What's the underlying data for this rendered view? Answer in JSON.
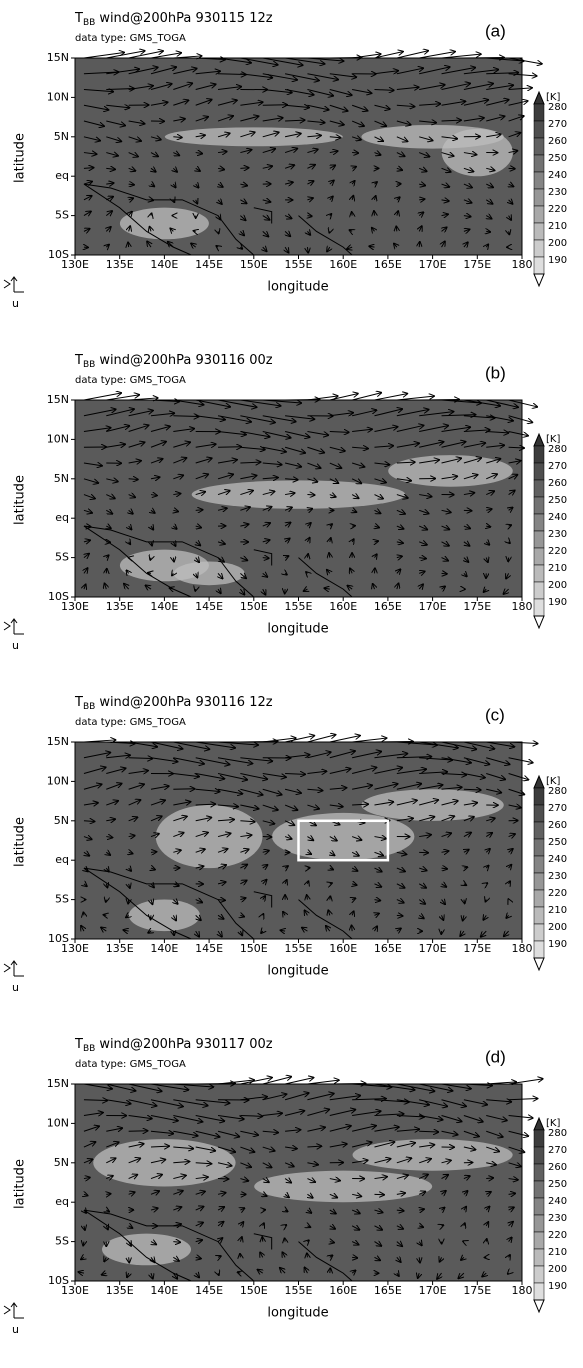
{
  "chart_data": [
    {
      "type": "map",
      "title_symbol": "T",
      "title_subscript": "BB",
      "title": "wind@200hPa 930115 12z",
      "subtitle": "data type: GMS_TOGA",
      "panel_label": "(a)",
      "xlabel": "longitude",
      "ylabel": "latitude",
      "vector_key": "u",
      "xlim": [
        130,
        180
      ],
      "ylim": [
        -10,
        15
      ],
      "xticks": [
        {
          "value": 130,
          "label": "130E"
        },
        {
          "value": 135,
          "label": "135E"
        },
        {
          "value": 140,
          "label": "140E"
        },
        {
          "value": 145,
          "label": "145E"
        },
        {
          "value": 150,
          "label": "150E"
        },
        {
          "value": 155,
          "label": "155E"
        },
        {
          "value": 160,
          "label": "160E"
        },
        {
          "value": 165,
          "label": "165E"
        },
        {
          "value": 170,
          "label": "170E"
        },
        {
          "value": 175,
          "label": "175E"
        },
        {
          "value": 180,
          "label": "180"
        }
      ],
      "yticks": [
        {
          "value": -10,
          "label": "10S"
        },
        {
          "value": -5,
          "label": "5S"
        },
        {
          "value": 0,
          "label": "eq"
        },
        {
          "value": 5,
          "label": "5N"
        },
        {
          "value": 10,
          "label": "10N"
        },
        {
          "value": 15,
          "label": "15N"
        }
      ],
      "colorbar_unit": "[K]",
      "colorbar_levels": [
        280,
        270,
        260,
        250,
        240,
        230,
        220,
        210,
        200,
        190
      ]
    },
    {
      "type": "map",
      "title_symbol": "T",
      "title_subscript": "BB",
      "title": "wind@200hPa 930116 00z",
      "subtitle": "data type: GMS_TOGA",
      "panel_label": "(b)",
      "xlabel": "longitude",
      "ylabel": "latitude",
      "vector_key": "u",
      "xlim": [
        130,
        180
      ],
      "ylim": [
        -10,
        15
      ],
      "xticks": [
        {
          "value": 130,
          "label": "130E"
        },
        {
          "value": 135,
          "label": "135E"
        },
        {
          "value": 140,
          "label": "140E"
        },
        {
          "value": 145,
          "label": "145E"
        },
        {
          "value": 150,
          "label": "150E"
        },
        {
          "value": 155,
          "label": "155E"
        },
        {
          "value": 160,
          "label": "160E"
        },
        {
          "value": 165,
          "label": "165E"
        },
        {
          "value": 170,
          "label": "170E"
        },
        {
          "value": 175,
          "label": "175E"
        },
        {
          "value": 180,
          "label": "180"
        }
      ],
      "yticks": [
        {
          "value": -10,
          "label": "10S"
        },
        {
          "value": -5,
          "label": "5S"
        },
        {
          "value": 0,
          "label": "eq"
        },
        {
          "value": 5,
          "label": "5N"
        },
        {
          "value": 10,
          "label": "10N"
        },
        {
          "value": 15,
          "label": "15N"
        }
      ],
      "colorbar_unit": "[K]",
      "colorbar_levels": [
        280,
        270,
        260,
        250,
        240,
        230,
        220,
        210,
        200,
        190
      ]
    },
    {
      "type": "map",
      "title_symbol": "T",
      "title_subscript": "BB",
      "title": "wind@200hPa 930116 12z",
      "subtitle": "data type: GMS_TOGA",
      "panel_label": "(c)",
      "xlabel": "longitude",
      "ylabel": "latitude",
      "vector_key": "u",
      "xlim": [
        130,
        180
      ],
      "ylim": [
        -10,
        15
      ],
      "xticks": [
        {
          "value": 130,
          "label": "130E"
        },
        {
          "value": 135,
          "label": "135E"
        },
        {
          "value": 140,
          "label": "140E"
        },
        {
          "value": 145,
          "label": "145E"
        },
        {
          "value": 150,
          "label": "150E"
        },
        {
          "value": 155,
          "label": "155E"
        },
        {
          "value": 160,
          "label": "160E"
        },
        {
          "value": 165,
          "label": "165E"
        },
        {
          "value": 170,
          "label": "170E"
        },
        {
          "value": 175,
          "label": "175E"
        },
        {
          "value": 180,
          "label": "180"
        }
      ],
      "yticks": [
        {
          "value": -10,
          "label": "10S"
        },
        {
          "value": -5,
          "label": "5S"
        },
        {
          "value": 0,
          "label": "eq"
        },
        {
          "value": 5,
          "label": "5N"
        },
        {
          "value": 10,
          "label": "10N"
        },
        {
          "value": 15,
          "label": "15N"
        }
      ],
      "colorbar_unit": "[K]",
      "colorbar_levels": [
        280,
        270,
        260,
        250,
        240,
        230,
        220,
        210,
        200,
        190
      ],
      "box": {
        "xlim": [
          155,
          165
        ],
        "ylim": [
          0,
          5
        ]
      }
    },
    {
      "type": "map",
      "title_symbol": "T",
      "title_subscript": "BB",
      "title": "wind@200hPa 930117 00z",
      "subtitle": "data type: GMS_TOGA",
      "panel_label": "(d)",
      "xlabel": "longitude",
      "ylabel": "latitude",
      "vector_key": "u",
      "xlim": [
        130,
        180
      ],
      "ylim": [
        -10,
        15
      ],
      "xticks": [
        {
          "value": 130,
          "label": "130E"
        },
        {
          "value": 135,
          "label": "135E"
        },
        {
          "value": 140,
          "label": "140E"
        },
        {
          "value": 145,
          "label": "145E"
        },
        {
          "value": 150,
          "label": "150E"
        },
        {
          "value": 155,
          "label": "155E"
        },
        {
          "value": 160,
          "label": "160E"
        },
        {
          "value": 165,
          "label": "165E"
        },
        {
          "value": 170,
          "label": "170E"
        },
        {
          "value": 175,
          "label": "175E"
        },
        {
          "value": 180,
          "label": "180"
        }
      ],
      "yticks": [
        {
          "value": -10,
          "label": "10S"
        },
        {
          "value": -5,
          "label": "5S"
        },
        {
          "value": 0,
          "label": "eq"
        },
        {
          "value": 5,
          "label": "5N"
        },
        {
          "value": 10,
          "label": "10N"
        },
        {
          "value": 15,
          "label": "15N"
        }
      ],
      "colorbar_unit": "[K]",
      "colorbar_levels": [
        280,
        270,
        260,
        250,
        240,
        230,
        220,
        210,
        200,
        190
      ]
    }
  ]
}
